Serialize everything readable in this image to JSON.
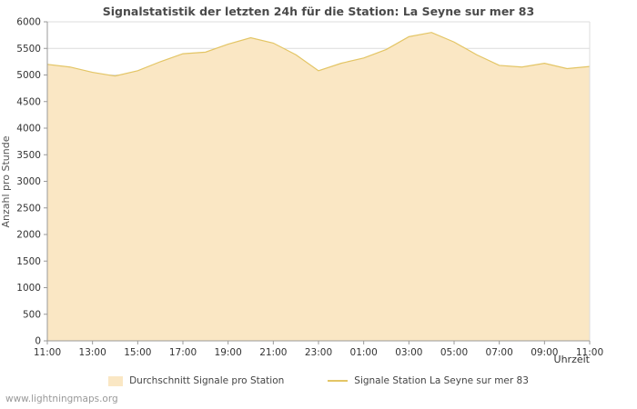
{
  "footer": {
    "text": "www.lightningmaps.org"
  },
  "legend": {
    "average_label": "Durchschnitt Signale pro Station",
    "station_label": "Signale Station La Seyne sur mer 83"
  },
  "colors": {
    "grid": "#dcdcdc",
    "axis": "#999999",
    "plot_border": "#dcdcdc",
    "title": "#4a4a4a",
    "tick_text": "#333333",
    "footer_text": "#999999",
    "background": "#ffffff",
    "area_fill": "#FAE7C4",
    "station_line": "#E3C565"
  },
  "chart_data": {
    "type": "area",
    "title": "Signalstatistik der letzten 24h für die Station: La Seyne sur mer 83",
    "xlabel": "Uhrzeit",
    "ylabel": "Anzahl pro Stunde",
    "ylim": [
      0,
      6000
    ],
    "ytick_step": 500,
    "grid": "horizontal",
    "legend_position": "bottom",
    "x_tick_labels": [
      "11:00",
      "13:00",
      "15:00",
      "17:00",
      "19:00",
      "21:00",
      "23:00",
      "01:00",
      "03:00",
      "05:00",
      "07:00",
      "09:00",
      "11:00"
    ],
    "x_hours": [
      "11:00",
      "12:00",
      "13:00",
      "14:00",
      "15:00",
      "16:00",
      "17:00",
      "18:00",
      "19:00",
      "20:00",
      "21:00",
      "22:00",
      "23:00",
      "00:00",
      "01:00",
      "02:00",
      "03:00",
      "04:00",
      "05:00",
      "06:00",
      "07:00",
      "08:00",
      "09:00",
      "10:00",
      "11:00"
    ],
    "series": [
      {
        "name": "Durchschnitt Signale pro Station",
        "type": "area",
        "color": "#FAE7C4",
        "values": [
          5200,
          5150,
          5050,
          4980,
          5080,
          5250,
          5400,
          5430,
          5580,
          5700,
          5600,
          5380,
          5080,
          5220,
          5320,
          5480,
          5720,
          5800,
          5620,
          5380,
          5180,
          5150,
          5220,
          5120,
          5160
        ]
      },
      {
        "name": "Signale Station La Seyne sur mer 83",
        "type": "line",
        "color": "#E3C565",
        "values": [
          5200,
          5150,
          5050,
          4980,
          5080,
          5250,
          5400,
          5430,
          5580,
          5700,
          5600,
          5380,
          5080,
          5220,
          5320,
          5480,
          5720,
          5800,
          5620,
          5380,
          5180,
          5150,
          5220,
          5120,
          5160
        ]
      }
    ]
  }
}
